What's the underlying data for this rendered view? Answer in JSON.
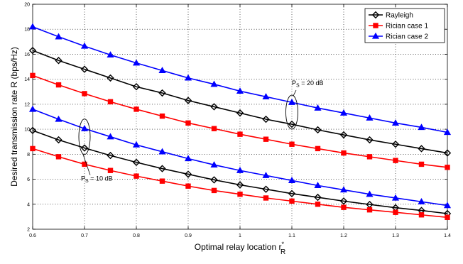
{
  "chart_data": {
    "type": "line",
    "xlabel": "Optimal relay location r",
    "xlabel_sup": "*",
    "xlabel_sub": "R",
    "ylabel": "Desired transmission rate R (bps/Hz)",
    "xlim": [
      0.6,
      1.4
    ],
    "ylim": [
      2,
      20
    ],
    "xticks": [
      0.6,
      0.7,
      0.8,
      0.9,
      1.0,
      1.1,
      1.2,
      1.3,
      1.4
    ],
    "xtick_labels": [
      "0.6",
      "0.7",
      "0.8",
      "0.9",
      "1",
      "1.1",
      "1.2",
      "1.3",
      "1.4"
    ],
    "yticks": [
      2,
      4,
      6,
      8,
      10,
      12,
      14,
      16,
      18,
      20
    ],
    "ytick_labels": [
      "2",
      "4",
      "6",
      "8",
      "10",
      "12",
      "14",
      "16",
      "18",
      "20"
    ],
    "grid": true,
    "legend_position": "top-right",
    "legend": [
      {
        "name": "Rayleigh",
        "color": "#000000",
        "marker": "diamond"
      },
      {
        "name": "Rician case 1",
        "color": "#ff0000",
        "marker": "square"
      },
      {
        "name": "Rician case 2",
        "color": "#0000ff",
        "marker": "triangle"
      }
    ],
    "x": [
      0.6,
      0.65,
      0.7,
      0.75,
      0.8,
      0.85,
      0.9,
      0.95,
      1.0,
      1.05,
      1.1,
      1.15,
      1.2,
      1.25,
      1.3,
      1.35,
      1.4
    ],
    "series": [
      {
        "name": "Rayleigh",
        "group": "20dB",
        "color": "#000000",
        "marker": "diamond",
        "values": [
          16.3,
          15.5,
          14.8,
          14.1,
          13.4,
          12.9,
          12.3,
          11.8,
          11.3,
          10.8,
          10.4,
          9.95,
          9.55,
          9.15,
          8.8,
          8.45,
          8.1
        ]
      },
      {
        "name": "Rician case 1",
        "group": "20dB",
        "color": "#ff0000",
        "marker": "square",
        "values": [
          14.3,
          13.55,
          12.85,
          12.2,
          11.6,
          11.05,
          10.5,
          10.05,
          9.6,
          9.2,
          8.8,
          8.45,
          8.1,
          7.8,
          7.5,
          7.2,
          6.95
        ]
      },
      {
        "name": "Rician case 2",
        "group": "20dB",
        "color": "#0000ff",
        "marker": "triangle",
        "values": [
          18.2,
          17.4,
          16.65,
          15.95,
          15.3,
          14.7,
          14.1,
          13.6,
          13.05,
          12.6,
          12.15,
          11.7,
          11.3,
          10.9,
          10.5,
          10.15,
          9.75
        ]
      },
      {
        "name": "Rayleigh",
        "group": "10dB",
        "color": "#000000",
        "marker": "diamond",
        "values": [
          9.9,
          9.15,
          8.5,
          7.9,
          7.35,
          6.85,
          6.4,
          5.95,
          5.55,
          5.2,
          4.85,
          4.55,
          4.25,
          3.98,
          3.72,
          3.5,
          3.25
        ]
      },
      {
        "name": "Rician case 1",
        "group": "10dB",
        "color": "#ff0000",
        "marker": "square",
        "values": [
          8.45,
          7.8,
          7.2,
          6.7,
          6.25,
          5.85,
          5.45,
          5.1,
          4.8,
          4.5,
          4.25,
          4.0,
          3.75,
          3.55,
          3.35,
          3.15,
          2.95
        ]
      },
      {
        "name": "Rician case 2",
        "group": "10dB",
        "color": "#0000ff",
        "marker": "triangle",
        "values": [
          11.6,
          10.8,
          10.05,
          9.4,
          8.75,
          8.2,
          7.65,
          7.15,
          6.7,
          6.3,
          5.9,
          5.5,
          5.15,
          4.8,
          4.5,
          4.2,
          3.9
        ]
      }
    ],
    "annotations": [
      {
        "id": "ps20",
        "text_main": "P",
        "text_sub": "S",
        "text_rest": " = 20 dB",
        "ellipse_x": 1.1,
        "ellipse_y": 10.4
      },
      {
        "id": "ps10",
        "text_main": "P",
        "text_sub": "S",
        "text_rest": " = 10 dB",
        "ellipse_x": 0.7,
        "ellipse_y": 9.4
      }
    ]
  }
}
